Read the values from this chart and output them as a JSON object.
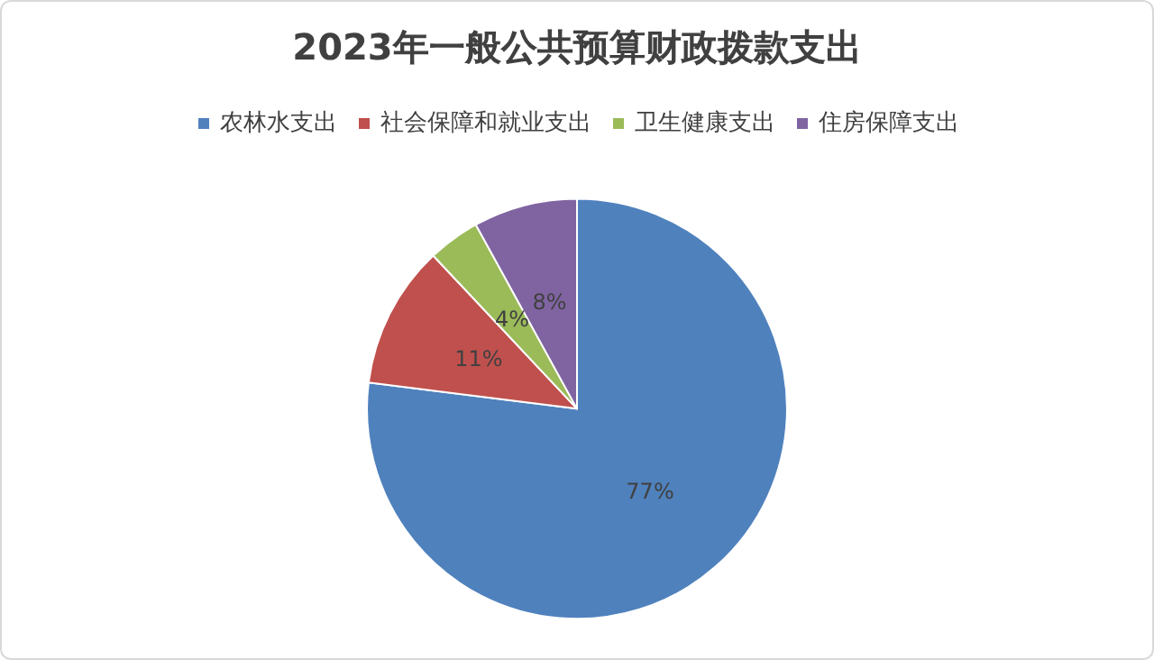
{
  "chart_data": {
    "type": "pie",
    "title": "2023年一般公共预算财政拨款支出",
    "categories": [
      "农林水支出",
      "社会保障和就业支出",
      "卫生健康支出",
      "住房保障支出"
    ],
    "values": [
      77,
      11,
      4,
      8
    ],
    "colors": [
      "#4f81bd",
      "#c0504d",
      "#9bbb59",
      "#8064a2"
    ],
    "value_labels": [
      "77%",
      "11%",
      "4%",
      "8%"
    ],
    "legend": "top"
  }
}
